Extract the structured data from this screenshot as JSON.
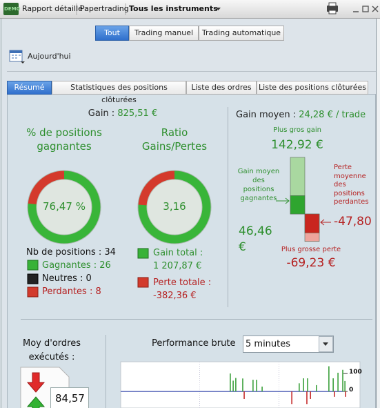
{
  "toolbar": {
    "badge": "DEMO",
    "items": [
      "Rapport détaillé",
      "Papertrading",
      "Tous les instruments"
    ]
  },
  "filters": [
    "Tout",
    "Trading manuel",
    "Trading automatique"
  ],
  "period": "Aujourd'hui",
  "tabs": [
    "Résumé",
    "Statistiques des positions clôturées",
    "Liste des ordres",
    "Liste des positions clôturées"
  ],
  "summary": {
    "gain_label": "Gain :",
    "gain": "825,51 €",
    "win_rate": {
      "title": "% de positions gagnantes",
      "label": "76,47 %",
      "value": 76.47
    },
    "ratio": {
      "title": "Ratio Gains/Pertes",
      "label": "3,16",
      "value": 3.16
    },
    "positions": "Nb de positions : 34",
    "winners": "Gagnantes : 26",
    "neutral": "Neutres : 0",
    "losers": "Perdantes : 8",
    "total_gain_label": "Gain total :",
    "total_gain": "1 207,87 €",
    "total_loss_label": "Perte totale :",
    "total_loss": "-382,36 €"
  },
  "average": {
    "label": "Gain moyen :",
    "value": "24,28 € / trade",
    "max_gain_label": "Plus gros gain",
    "max_gain": {
      "value": 142.92,
      "label": "142,92 €"
    },
    "avg_gain_label": "Gain moyen des positions gagnantes",
    "avg_gain": {
      "value": 46.46,
      "label": "46,46 €"
    },
    "avg_loss_label": "Perte moyenne des positions perdantes",
    "avg_loss": {
      "value": -47.8,
      "label": "-47,80 €"
    },
    "max_loss_label": "Plus grosse perte",
    "max_loss": {
      "value": -69.23,
      "label": "-69,23 €"
    }
  },
  "orders": {
    "label": "Moy d'ordres exécutés :",
    "value": "84,57"
  },
  "performance": {
    "title": "Performance brute",
    "interval": "5 minutes"
  },
  "chart_data": {
    "type": "bar",
    "x": [
      45.8,
      47,
      48.1,
      51,
      51.6,
      55.3,
      56.8,
      59.1,
      71.5,
      74.6,
      76.4,
      77.8,
      78.1,
      79.3,
      81.8,
      87,
      88.8,
      89.3,
      90.8,
      92.8,
      93.7,
      94
    ],
    "values": [
      100,
      60,
      75,
      72,
      -42,
      65,
      65,
      27,
      -70,
      45,
      73,
      -70,
      73,
      -42,
      35,
      140,
      73,
      -30,
      104,
      120,
      58,
      -30
    ],
    "xlim": [
      0,
      100
    ],
    "ylim": [
      -92,
      165
    ],
    "yticks": [
      0,
      100
    ],
    "colors": {
      "positive": "#2f9a2f",
      "negative": "#c21f1f"
    }
  }
}
